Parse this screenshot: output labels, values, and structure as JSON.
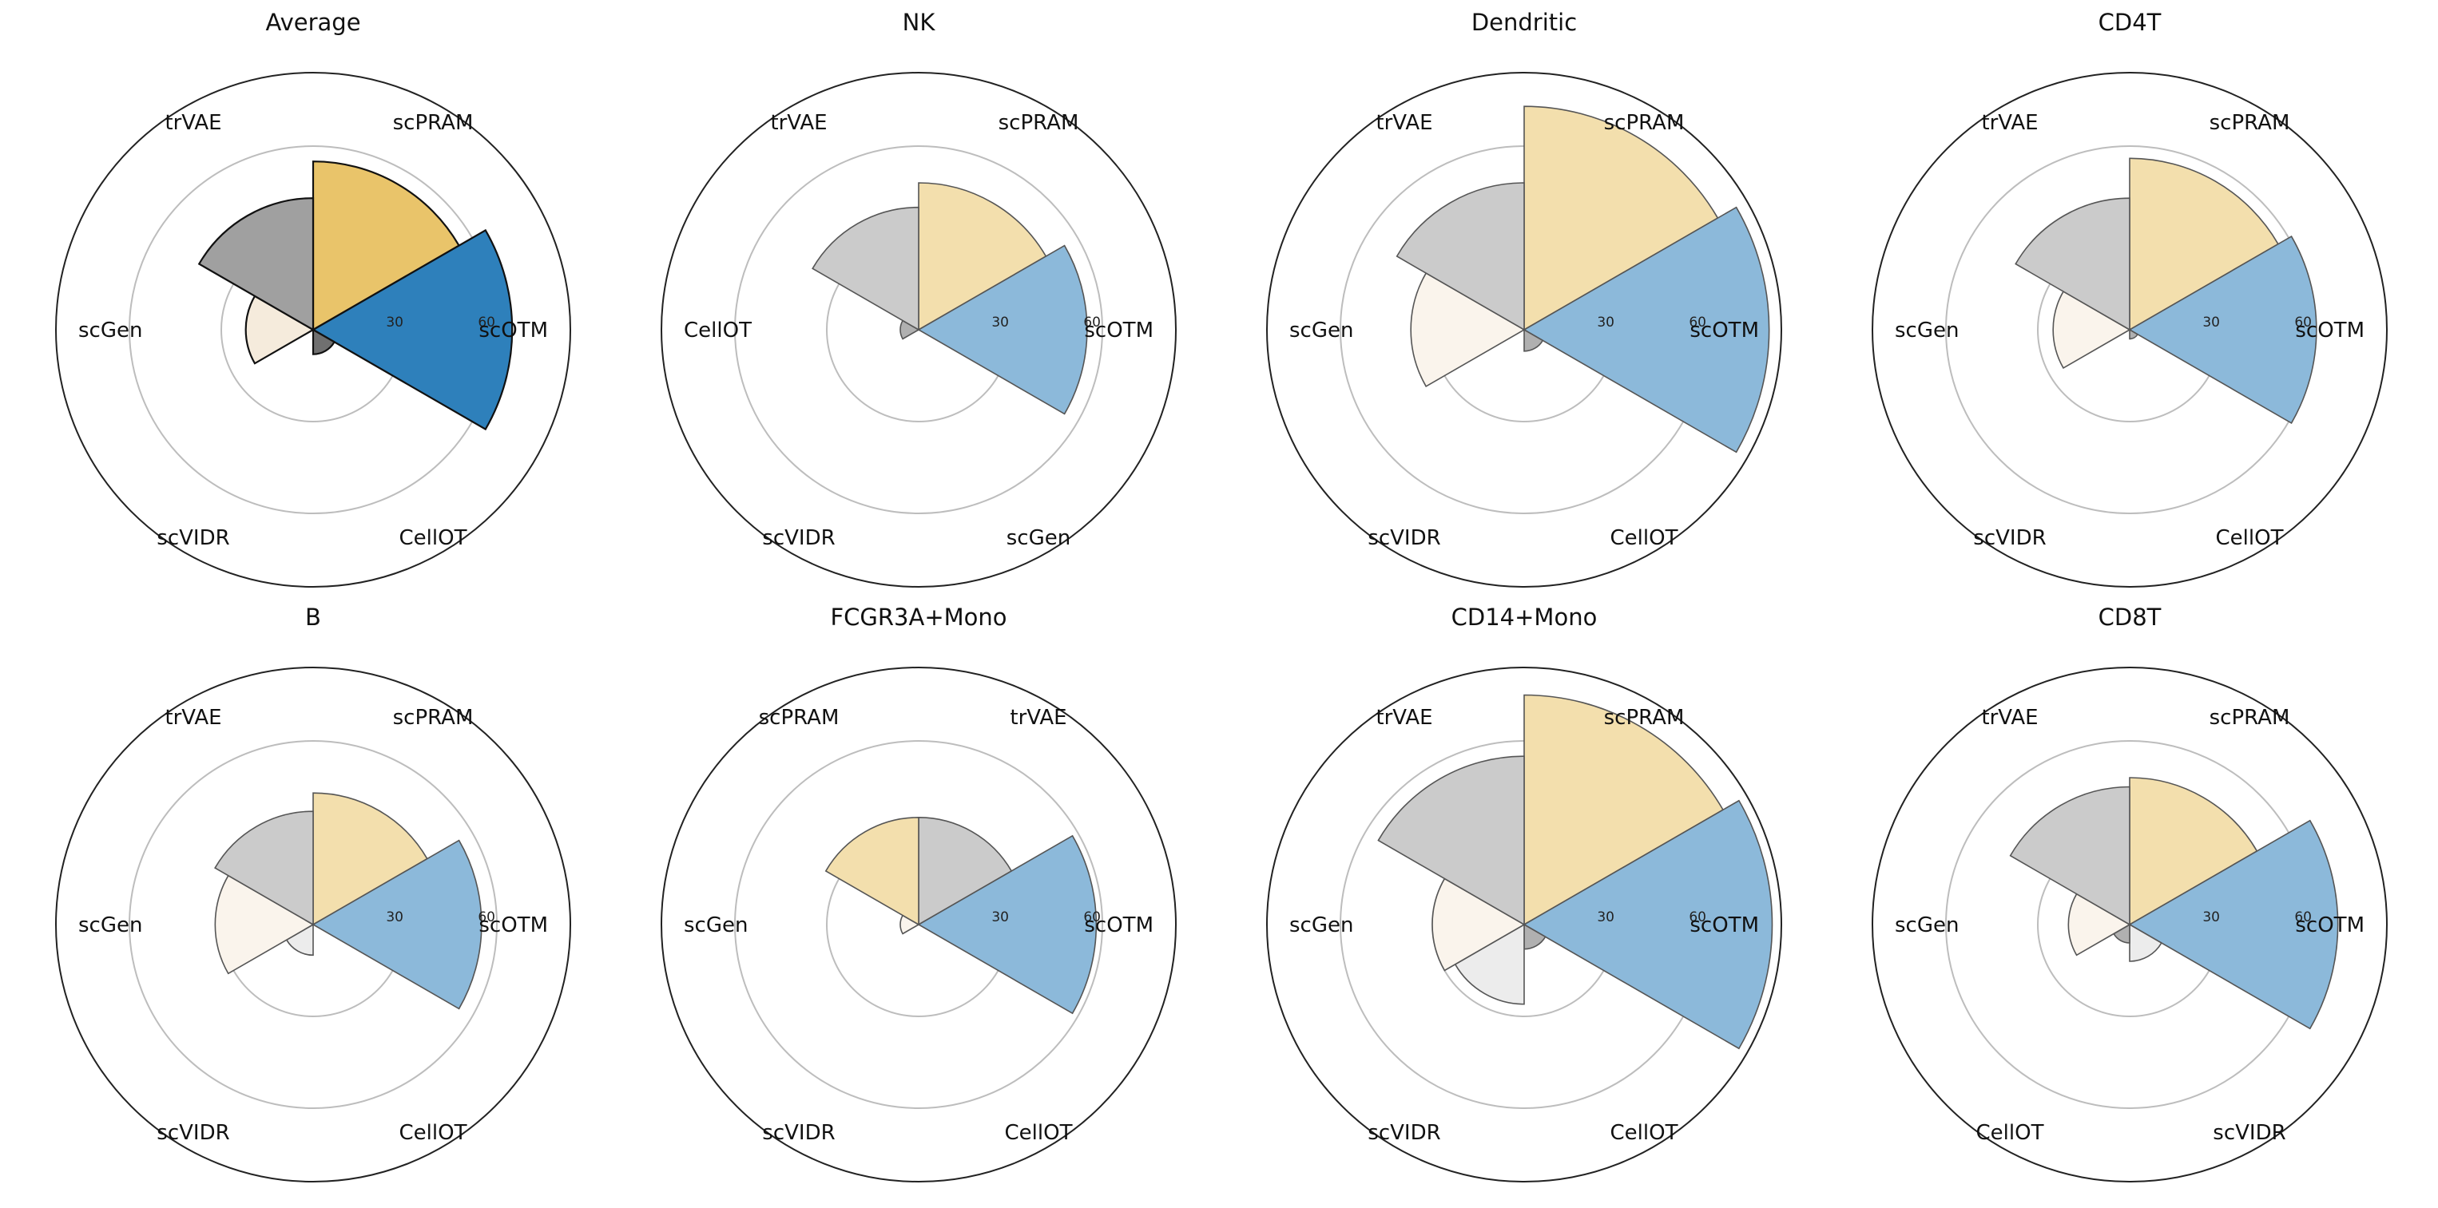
{
  "figure": {
    "rmax": 84,
    "angle_labels": [
      "0",
      "30",
      "60"
    ],
    "ring_values": [
      0,
      30,
      60
    ]
  },
  "colors": {
    "scPRAM": "#E9C46A",
    "scOTM": "#2E80BB",
    "scGen": "#F5EBDC",
    "scVIDR": "#DCDCDC",
    "trVAE": "#A0A0A0",
    "CellOT": "#707070"
  },
  "chart_data": [
    {
      "type": "polar-bar",
      "title": "Average",
      "style": "strong",
      "bars": [
        {
          "method": "scPRAM",
          "value": 55
        },
        {
          "method": "scOTM",
          "value": 65
        },
        {
          "method": "CellOT",
          "value": 8
        },
        {
          "method": "scVIDR",
          "value": 0
        },
        {
          "method": "scGen",
          "value": 22
        },
        {
          "method": "trVAE",
          "value": 43
        }
      ],
      "axis_labels": [
        "scPRAM",
        "scOTM",
        "CellOT",
        "scVIDR",
        "scGen",
        "trVAE"
      ],
      "ticks": [
        "30",
        "60"
      ]
    },
    {
      "type": "polar-bar",
      "title": "NK",
      "style": "light",
      "bars": [
        {
          "method": "scPRAM",
          "value": 48
        },
        {
          "method": "scOTM",
          "value": 55
        },
        {
          "method": "scGen",
          "value": 0
        },
        {
          "method": "scVIDR",
          "value": 0
        },
        {
          "method": "CellOT",
          "value": 6
        },
        {
          "method": "trVAE",
          "value": 40
        }
      ],
      "axis_labels": [
        "scPRAM",
        "scOTM",
        "scGen",
        "scVIDR",
        "CellOT",
        "trVAE"
      ],
      "ticks": [
        "30",
        "60"
      ]
    },
    {
      "type": "polar-bar",
      "title": "Dendritic",
      "style": "light",
      "bars": [
        {
          "method": "scPRAM",
          "value": 73
        },
        {
          "method": "scOTM",
          "value": 80
        },
        {
          "method": "CellOT",
          "value": 7
        },
        {
          "method": "scVIDR",
          "value": 0
        },
        {
          "method": "scGen",
          "value": 37
        },
        {
          "method": "trVAE",
          "value": 48
        }
      ],
      "axis_labels": [
        "scPRAM",
        "scOTM",
        "CellOT",
        "scVIDR",
        "scGen",
        "trVAE"
      ],
      "ticks": [
        "30",
        "60"
      ]
    },
    {
      "type": "polar-bar",
      "title": "CD4T",
      "style": "light",
      "bars": [
        {
          "method": "scPRAM",
          "value": 56
        },
        {
          "method": "scOTM",
          "value": 61
        },
        {
          "method": "CellOT",
          "value": 3
        },
        {
          "method": "scVIDR",
          "value": 0
        },
        {
          "method": "scGen",
          "value": 25
        },
        {
          "method": "trVAE",
          "value": 43
        }
      ],
      "axis_labels": [
        "scPRAM",
        "scOTM",
        "CellOT",
        "scVIDR",
        "scGen",
        "trVAE"
      ],
      "ticks": [
        "30",
        "60"
      ]
    },
    {
      "type": "polar-bar",
      "title": "B",
      "style": "light",
      "bars": [
        {
          "method": "scPRAM",
          "value": 43
        },
        {
          "method": "scOTM",
          "value": 55
        },
        {
          "method": "CellOT",
          "value": 0
        },
        {
          "method": "scVIDR",
          "value": 10
        },
        {
          "method": "scGen",
          "value": 32
        },
        {
          "method": "trVAE",
          "value": 37
        }
      ],
      "axis_labels": [
        "scPRAM",
        "scOTM",
        "CellOT",
        "scVIDR",
        "scGen",
        "trVAE"
      ],
      "ticks": [
        "30",
        "60"
      ]
    },
    {
      "type": "polar-bar",
      "title": "FCGR3A+Mono",
      "style": "light",
      "bars": [
        {
          "method": "trVAE",
          "value": 35
        },
        {
          "method": "scOTM",
          "value": 58
        },
        {
          "method": "CellOT",
          "value": 0
        },
        {
          "method": "scVIDR",
          "value": 0
        },
        {
          "method": "scGen",
          "value": 6
        },
        {
          "method": "scPRAM",
          "value": 35
        }
      ],
      "axis_labels": [
        "trVAE",
        "scOTM",
        "CellOT",
        "scVIDR",
        "scGen",
        "scPRAM"
      ],
      "ticks": [
        "30",
        "60"
      ]
    },
    {
      "type": "polar-bar",
      "title": "CD14+Mono",
      "style": "light",
      "bars": [
        {
          "method": "scPRAM",
          "value": 75
        },
        {
          "method": "scOTM",
          "value": 81
        },
        {
          "method": "CellOT",
          "value": 8
        },
        {
          "method": "scVIDR",
          "value": 26
        },
        {
          "method": "scGen",
          "value": 30
        },
        {
          "method": "trVAE",
          "value": 55
        }
      ],
      "axis_labels": [
        "scPRAM",
        "scOTM",
        "CellOT",
        "scVIDR",
        "scGen",
        "trVAE"
      ],
      "ticks": [
        "30",
        "60"
      ]
    },
    {
      "type": "polar-bar",
      "title": "CD8T",
      "style": "light",
      "bars": [
        {
          "method": "scPRAM",
          "value": 48
        },
        {
          "method": "scOTM",
          "value": 68
        },
        {
          "method": "scVIDR",
          "value": 12
        },
        {
          "method": "CellOT",
          "value": 6
        },
        {
          "method": "scGen",
          "value": 20
        },
        {
          "method": "trVAE",
          "value": 45
        }
      ],
      "axis_labels": [
        "scPRAM",
        "scOTM",
        "scVIDR",
        "CellOT",
        "scGen",
        "trVAE"
      ],
      "ticks": [
        "30",
        "60"
      ]
    }
  ]
}
